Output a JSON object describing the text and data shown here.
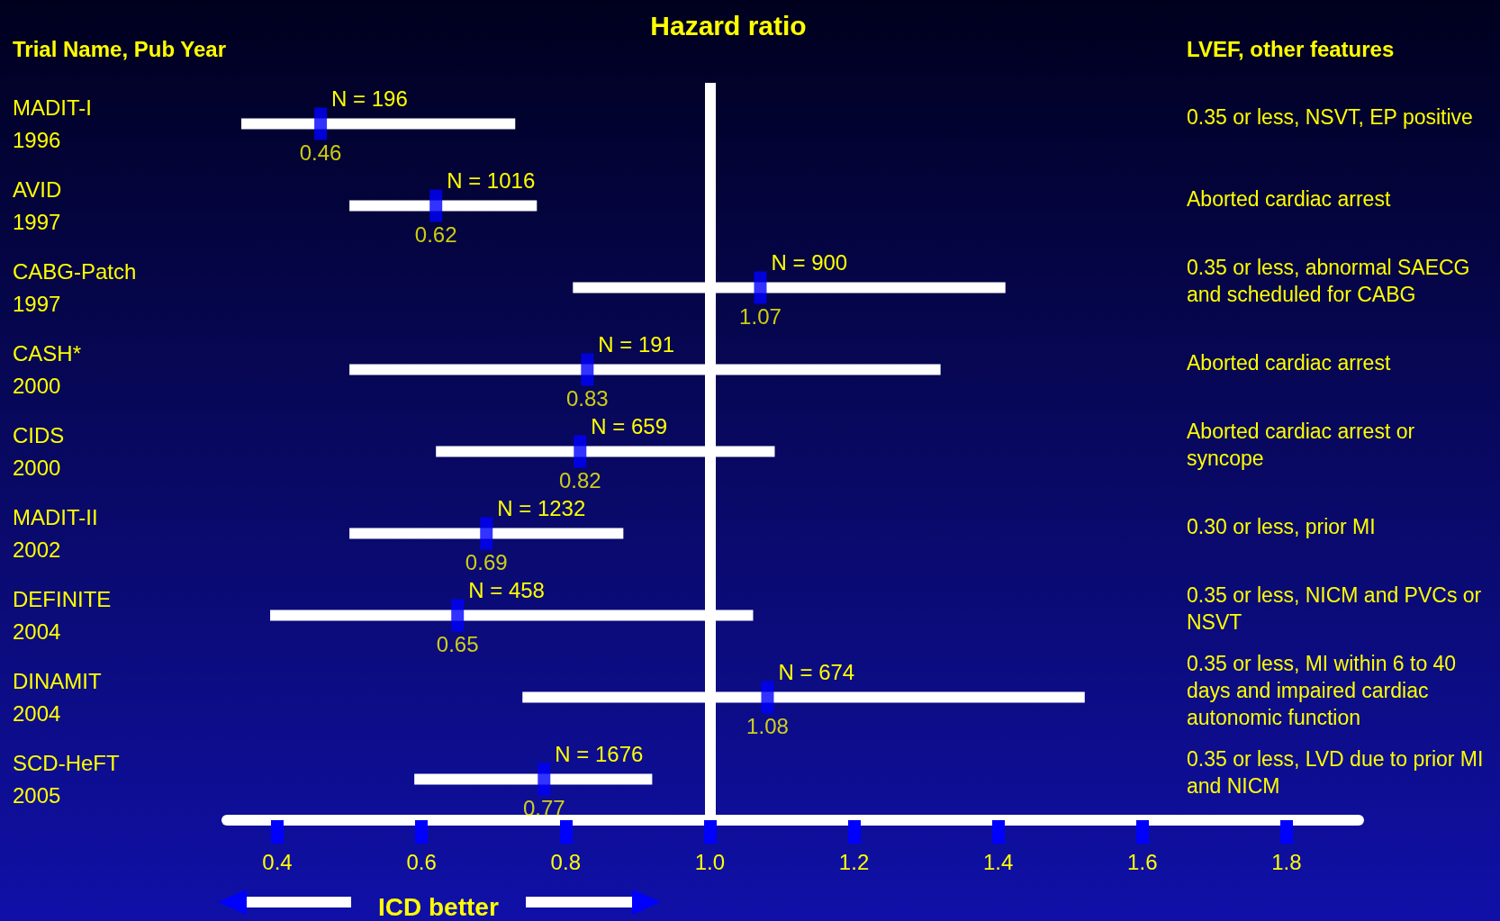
{
  "chart_data": {
    "type": "bar",
    "orientation": "horizontal",
    "title": "Hazard ratio",
    "ylabel": "Trial Name, Pub Year",
    "y2label": "LVEF, other features",
    "xlabel": "ICD better",
    "categories": [
      "MADIT-I\n1996",
      "AVID\n1997",
      "CABG-Patch\n1997",
      "CASH*\n2000",
      "CIDS\n2000",
      "MADIT-II\n2002",
      "DEFINITE\n2004",
      "DINAMIT\n2004",
      "SCD-HeFT\n2005"
    ],
    "series": [
      {
        "color": "#ffffff",
        "base": [
          0.35,
          0.5,
          0.81,
          0.5,
          0.62,
          0.5,
          0.39,
          0.74,
          0.59
        ],
        "values": [
          0.38,
          0.26,
          0.6,
          0.82,
          0.47,
          0.38,
          0.67,
          0.78,
          0.33
        ]
      },
      {
        "type": "scatter",
        "color": "#0000ff",
        "marker": "square",
        "values": [
          0.46,
          0.62,
          1.07,
          0.83,
          0.82,
          0.69,
          0.65,
          1.08,
          0.77
        ],
        "value_labels": [
          "0.46",
          "0.62",
          "1.07",
          "0.83",
          "0.82",
          "0.69",
          "0.65",
          "1.08",
          "0.77"
        ]
      }
    ],
    "xlim": [
      0.33,
      1.9
    ],
    "xticks": [
      0.4,
      0.6,
      0.8,
      {
        "value": 1,
        "label": "1.0"
      },
      1.2,
      1.4,
      1.6,
      1.8
    ],
    "ref_lines": [
      {
        "axis": "x",
        "value": 1,
        "color": "#ffffff"
      }
    ],
    "annotations": [
      {
        "text": "N = 196",
        "x": 0.46,
        "y": "MADIT-I\n1996"
      },
      {
        "text": "N = 1016",
        "x": 0.62,
        "y": "AVID\n1997"
      },
      {
        "text": "N = 900",
        "x": 1.07,
        "y": "CABG-Patch\n1997"
      },
      {
        "text": "N = 191",
        "x": 0.83,
        "y": "CASH*\n2000"
      },
      {
        "text": "N = 659",
        "x": 0.82,
        "y": "CIDS\n2000"
      },
      {
        "text": "N = 1232",
        "x": 0.69,
        "y": "MADIT-II\n2002"
      },
      {
        "text": "N = 458",
        "x": 0.65,
        "y": "DEFINITE\n2004"
      },
      {
        "text": "N = 674",
        "x": 1.08,
        "y": "DINAMIT\n2004"
      },
      {
        "text": "N = 1676",
        "x": 0.77,
        "y": "SCD-HeFT\n2005"
      },
      "0.35 or less, NSVT, EP positive",
      "Aborted cardiac arrest",
      "0.35 or less, abnormal SAECG and scheduled for CABG",
      "Aborted cardiac arrest",
      "Aborted cardiac arrest or syncope",
      "0.30 or less, prior MI",
      "0.35 or less, NICM and PVCs or NSVT",
      "0.35 or less, MI within 6 to 40 days and impaired cardiac autonomic function",
      "0.35 or less, LVD due to prior MI and NICM"
    ]
  }
}
